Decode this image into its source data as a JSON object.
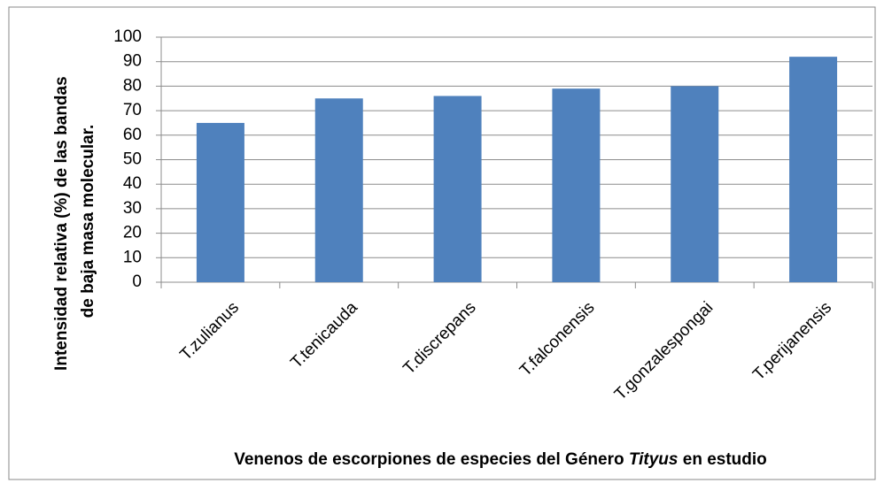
{
  "chart_data": {
    "type": "bar",
    "categories": [
      "T.zulianus",
      "T.tenicauda",
      "T.discrepans",
      "T.falconensis",
      "T.gonzalespongai",
      "T.perijanensis"
    ],
    "values": [
      65,
      75,
      76,
      79,
      80,
      92
    ],
    "color": "#4f81bd",
    "ylim": [
      0,
      100
    ],
    "yticks": [
      0,
      10,
      20,
      30,
      40,
      50,
      60,
      70,
      80,
      90,
      100
    ],
    "grid": true,
    "y_label": [
      "Intensidad relativa (%) de las bandas",
      "de baja masa molecular."
    ],
    "x_label": [
      "Venenos de escorpiones de especies del Género ",
      "Tityus",
      " en estudio"
    ]
  }
}
